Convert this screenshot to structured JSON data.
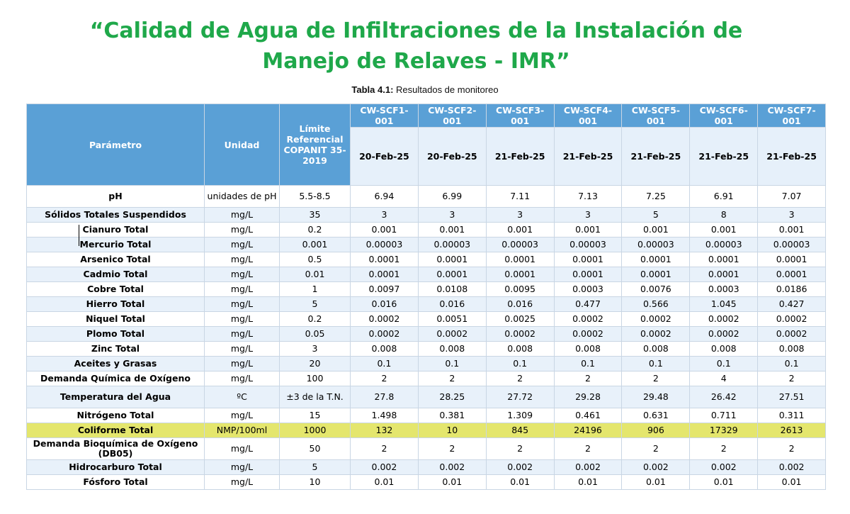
{
  "title_line1": "“Calidad de Agua de Infiltraciones de la Instalación de",
  "title_line2": "Manejo de Relaves - IMR”",
  "caption_bold": "Tabla 4.1:",
  "caption_text": " Resultados de monitoreo",
  "header": {
    "parametro": "Parámetro",
    "unidad": "Unidad",
    "limite": "Límite Referencial COPANIT 35-2019",
    "sites": [
      "CW-SCF1-001",
      "CW-SCF2-001",
      "CW-SCF3-001",
      "CW-SCF4-001",
      "CW-SCF5-001",
      "CW-SCF6-001",
      "CW-SCF7-001"
    ],
    "dates": [
      "20-Feb-25",
      "20-Feb-25",
      "21-Feb-25",
      "21-Feb-25",
      "21-Feb-25",
      "21-Feb-25",
      "21-Feb-25"
    ]
  },
  "rows": [
    {
      "param": "pH",
      "unit": "unidades de pH",
      "limit": "5.5-8.5",
      "values": [
        "6.94",
        "6.99",
        "7.11",
        "7.13",
        "7.25",
        "6.91",
        "7.07"
      ]
    },
    {
      "param": "Sólidos Totales Suspendidos",
      "unit": "mg/L",
      "limit": "35",
      "values": [
        "3",
        "3",
        "3",
        "3",
        "5",
        "8",
        "3"
      ]
    },
    {
      "param": "Cianuro Total",
      "unit": "mg/L",
      "limit": "0.2",
      "values": [
        "0.001",
        "0.001",
        "0.001",
        "0.001",
        "0.001",
        "0.001",
        "0.001"
      ]
    },
    {
      "param": "Mercurio Total",
      "unit": "mg/L",
      "limit": "0.001",
      "values": [
        "0.00003",
        "0.00003",
        "0.00003",
        "0.00003",
        "0.00003",
        "0.00003",
        "0.00003"
      ]
    },
    {
      "param": "Arsenico Total",
      "unit": "mg/L",
      "limit": "0.5",
      "values": [
        "0.0001",
        "0.0001",
        "0.0001",
        "0.0001",
        "0.0001",
        "0.0001",
        "0.0001"
      ]
    },
    {
      "param": "Cadmio Total",
      "unit": "mg/L",
      "limit": "0.01",
      "values": [
        "0.0001",
        "0.0001",
        "0.0001",
        "0.0001",
        "0.0001",
        "0.0001",
        "0.0001"
      ]
    },
    {
      "param": "Cobre Total",
      "unit": "mg/L",
      "limit": "1",
      "values": [
        "0.0097",
        "0.0108",
        "0.0095",
        "0.0003",
        "0.0076",
        "0.0003",
        "0.0186"
      ]
    },
    {
      "param": "Hierro Total",
      "unit": "mg/L",
      "limit": "5",
      "values": [
        "0.016",
        "0.016",
        "0.016",
        "0.477",
        "0.566",
        "1.045",
        "0.427"
      ]
    },
    {
      "param": "Niquel Total",
      "unit": "mg/L",
      "limit": "0.2",
      "values": [
        "0.0002",
        "0.0051",
        "0.0025",
        "0.0002",
        "0.0002",
        "0.0002",
        "0.0002"
      ]
    },
    {
      "param": "Plomo Total",
      "unit": "mg/L",
      "limit": "0.05",
      "values": [
        "0.0002",
        "0.0002",
        "0.0002",
        "0.0002",
        "0.0002",
        "0.0002",
        "0.0002"
      ]
    },
    {
      "param": "Zinc Total",
      "unit": "mg/L",
      "limit": "3",
      "values": [
        "0.008",
        "0.008",
        "0.008",
        "0.008",
        "0.008",
        "0.008",
        "0.008"
      ]
    },
    {
      "param": "Aceites y Grasas",
      "unit": "mg/L",
      "limit": "20",
      "values": [
        "0.1",
        "0.1",
        "0.1",
        "0.1",
        "0.1",
        "0.1",
        "0.1"
      ]
    },
    {
      "param": "Demanda Química de Oxígeno",
      "unit": "mg/L",
      "limit": "100",
      "values": [
        "2",
        "2",
        "2",
        "2",
        "2",
        "4",
        "2"
      ]
    },
    {
      "param": "Temperatura del Agua",
      "unit": "ºC",
      "limit": "±3 de la T.N.",
      "values": [
        "27.8",
        "28.25",
        "27.72",
        "29.28",
        "29.48",
        "26.42",
        "27.51"
      ]
    },
    {
      "param": "Nitrógeno Total",
      "unit": "mg/L",
      "limit": "15",
      "values": [
        "1.498",
        "0.381",
        "1.309",
        "0.461",
        "0.631",
        "0.711",
        "0.311"
      ]
    },
    {
      "param": "Coliforme Total",
      "unit": "NMP/100ml",
      "limit": "1000",
      "values": [
        "132",
        "10",
        "845",
        "24196",
        "906",
        "17329",
        "2613"
      ],
      "highlight": true
    },
    {
      "param": "Demanda Bioquímica de Oxígeno (DB05)",
      "unit": "mg/L",
      "limit": "50",
      "values": [
        "2",
        "2",
        "2",
        "2",
        "2",
        "2",
        "2"
      ]
    },
    {
      "param": "Hidrocarburo Total",
      "unit": "mg/L",
      "limit": "5",
      "values": [
        "0.002",
        "0.002",
        "0.002",
        "0.002",
        "0.002",
        "0.002",
        "0.002"
      ]
    },
    {
      "param": "Fósforo Total",
      "unit": "mg/L",
      "limit": "10",
      "values": [
        "0.01",
        "0.01",
        "0.01",
        "0.01",
        "0.01",
        "0.01",
        "0.01"
      ]
    }
  ],
  "colors": {
    "title": "#1fa84a",
    "header_bg": "#5aa0d6",
    "date_row_bg": "#e6f0fa",
    "stripe_bg": "#e8f1fa",
    "highlight": "#e4e66d"
  }
}
